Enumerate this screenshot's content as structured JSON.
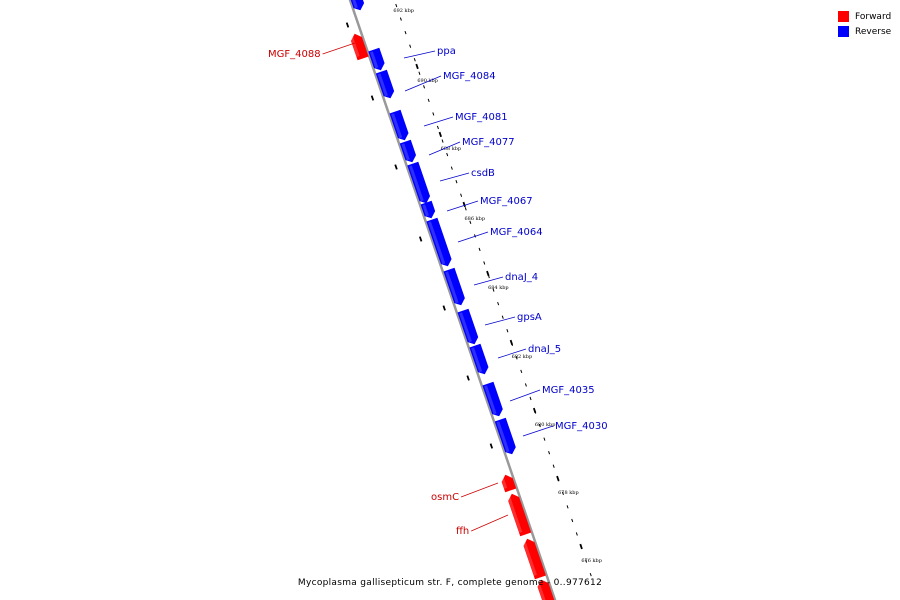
{
  "caption": "Mycoplasma gallisepticum str. F, complete genome - 0..977612",
  "legend": [
    {
      "label": "Forward",
      "color": "#ff0000"
    },
    {
      "label": "Reverse",
      "color": "#0000ff"
    }
  ],
  "colors": {
    "forward": "#ff0000",
    "reverse": "#0000ff",
    "backbone": "#999999",
    "label_forward": "#cc0000",
    "label_reverse": "#0000cc"
  },
  "ticks": [
    "692 kbp",
    "690 kbp",
    "688 kbp",
    "686 kbp",
    "684 kbp",
    "682 kbp",
    "680 kbp",
    "678 kbp",
    "676 kbp"
  ],
  "genes": [
    {
      "name": "",
      "strand": "reverse"
    },
    {
      "name": "MGF_4088",
      "strand": "forward"
    },
    {
      "name": "ppa",
      "strand": "reverse"
    },
    {
      "name": "MGF_4084",
      "strand": "reverse"
    },
    {
      "name": "MGF_4081",
      "strand": "reverse"
    },
    {
      "name": "MGF_4077",
      "strand": "reverse"
    },
    {
      "name": "csdB",
      "strand": "reverse"
    },
    {
      "name": "MGF_4067",
      "strand": "reverse"
    },
    {
      "name": "MGF_4064",
      "strand": "reverse"
    },
    {
      "name": "dnaJ_4",
      "strand": "reverse"
    },
    {
      "name": "gpsA",
      "strand": "reverse"
    },
    {
      "name": "dnaJ_5",
      "strand": "reverse"
    },
    {
      "name": "MGF_4035",
      "strand": "reverse"
    },
    {
      "name": "MGF_4030",
      "strand": "reverse"
    },
    {
      "name": "osmC",
      "strand": "forward"
    },
    {
      "name": "ffh",
      "strand": "forward"
    },
    {
      "name": "",
      "strand": "forward"
    },
    {
      "name": "",
      "strand": "forward"
    }
  ]
}
